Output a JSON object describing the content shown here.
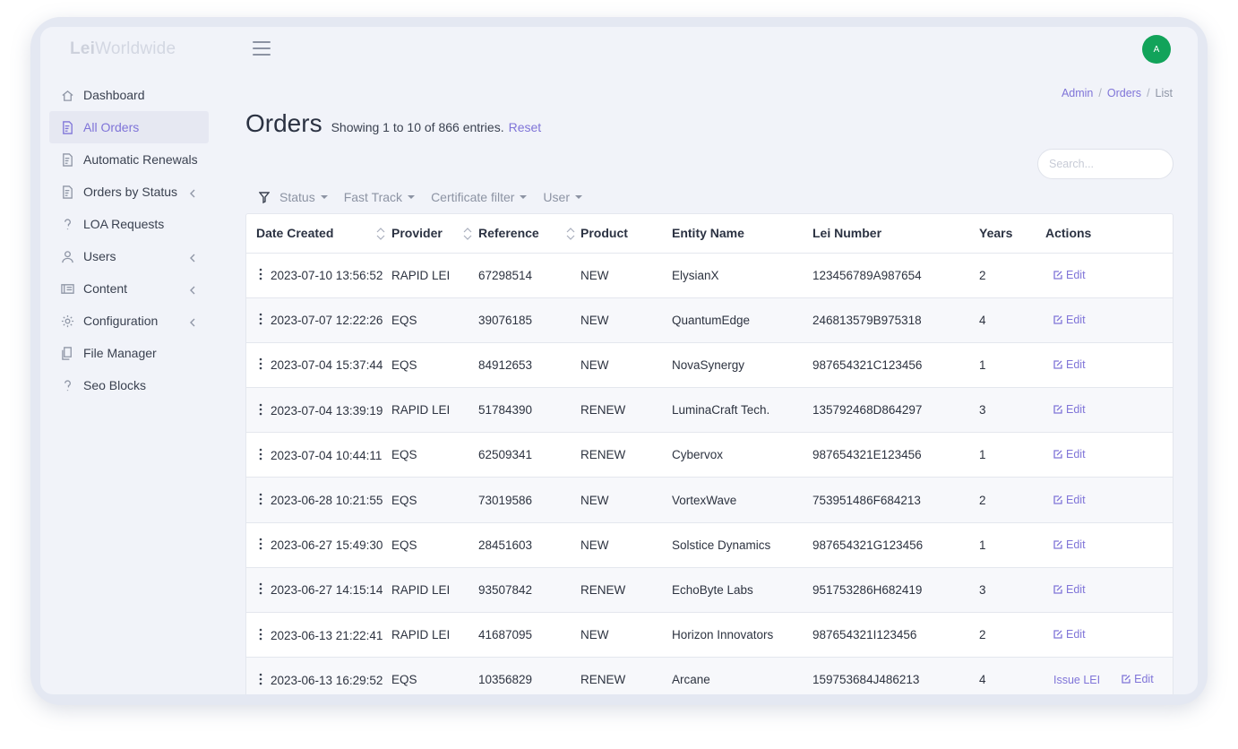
{
  "brand": {
    "part1": "Lei",
    "part2": "Worldwide"
  },
  "user": {
    "avatar_initial": "A",
    "avatar_color": "#12a35a"
  },
  "accent_color": "#7f74d8",
  "sidebar": {
    "items": [
      {
        "label": "Dashboard",
        "icon": "home-icon",
        "active": false,
        "expandable": false
      },
      {
        "label": "All Orders",
        "icon": "invoice-icon",
        "active": true,
        "expandable": false
      },
      {
        "label": "Automatic Renewals",
        "icon": "invoice-icon",
        "active": false,
        "expandable": false
      },
      {
        "label": "Orders by Status",
        "icon": "invoice-icon",
        "active": false,
        "expandable": true
      },
      {
        "label": "LOA Requests",
        "icon": "question-icon",
        "active": false,
        "expandable": false
      },
      {
        "label": "Users",
        "icon": "user-icon",
        "active": false,
        "expandable": true
      },
      {
        "label": "Content",
        "icon": "content-icon",
        "active": false,
        "expandable": true
      },
      {
        "label": "Configuration",
        "icon": "gear-icon",
        "active": false,
        "expandable": true
      },
      {
        "label": "File Manager",
        "icon": "files-icon",
        "active": false,
        "expandable": false
      },
      {
        "label": "Seo Blocks",
        "icon": "question-icon",
        "active": false,
        "expandable": false
      }
    ]
  },
  "breadcrumb": {
    "items": [
      "Admin",
      "Orders",
      "List"
    ],
    "separator": "/"
  },
  "page": {
    "title": "Orders",
    "entries_text": "Showing 1 to 10 of 866 entries.",
    "reset_label": "Reset"
  },
  "search": {
    "placeholder": "Search...",
    "value": ""
  },
  "filters": [
    "Status",
    "Fast Track",
    "Certificate filter",
    "User"
  ],
  "table": {
    "columns": [
      "Date Created",
      "Provider",
      "Reference",
      "Product",
      "Entity Name",
      "Lei Number",
      "Years",
      "Actions"
    ],
    "edit_label": "Edit",
    "issue_label": "Issue LEI",
    "rows": [
      {
        "date": "2023-07-10 13:56:52",
        "provider": "RAPID LEI",
        "reference": "67298514",
        "product": "NEW",
        "entity": "ElysianX",
        "lei": "123456789A987654",
        "years": "2",
        "issue": false
      },
      {
        "date": "2023-07-07 12:22:26",
        "provider": "EQS",
        "reference": "39076185",
        "product": "NEW",
        "entity": "QuantumEdge",
        "lei": "246813579B975318",
        "years": "4",
        "issue": false
      },
      {
        "date": "2023-07-04 15:37:44",
        "provider": "EQS",
        "reference": "84912653",
        "product": "NEW",
        "entity": "NovaSynergy",
        "lei": "987654321C123456",
        "years": "1",
        "issue": false
      },
      {
        "date": "2023-07-04 13:39:19",
        "provider": "RAPID LEI",
        "reference": "51784390",
        "product": "RENEW",
        "entity": "LuminaCraft Tech.",
        "lei": "135792468D864297",
        "years": "3",
        "issue": false
      },
      {
        "date": "2023-07-04 10:44:11",
        "provider": "EQS",
        "reference": "62509341",
        "product": "RENEW",
        "entity": "Cybervox",
        "lei": "987654321E123456",
        "years": "1",
        "issue": false
      },
      {
        "date": "2023-06-28 10:21:55",
        "provider": "EQS",
        "reference": "73019586",
        "product": "NEW",
        "entity": "VortexWave",
        "lei": "753951486F684213",
        "years": "2",
        "issue": false
      },
      {
        "date": "2023-06-27 15:49:30",
        "provider": "EQS",
        "reference": "28451603",
        "product": "NEW",
        "entity": "Solstice Dynamics",
        "lei": "987654321G123456",
        "years": "1",
        "issue": false
      },
      {
        "date": "2023-06-27 14:15:14",
        "provider": "RAPID LEI",
        "reference": "93507842",
        "product": "RENEW",
        "entity": "EchoByte Labs",
        "lei": "951753286H682419",
        "years": "3",
        "issue": false
      },
      {
        "date": "2023-06-13 21:22:41",
        "provider": "RAPID LEI",
        "reference": "41687095",
        "product": "NEW",
        "entity": "Horizon Innovators",
        "lei": "987654321I123456",
        "years": "2",
        "issue": false
      },
      {
        "date": "2023-06-13 16:29:52",
        "provider": "EQS",
        "reference": "10356829",
        "product": "RENEW",
        "entity": "Arcane",
        "lei": "159753684J486213",
        "years": "4",
        "issue": true
      }
    ]
  }
}
